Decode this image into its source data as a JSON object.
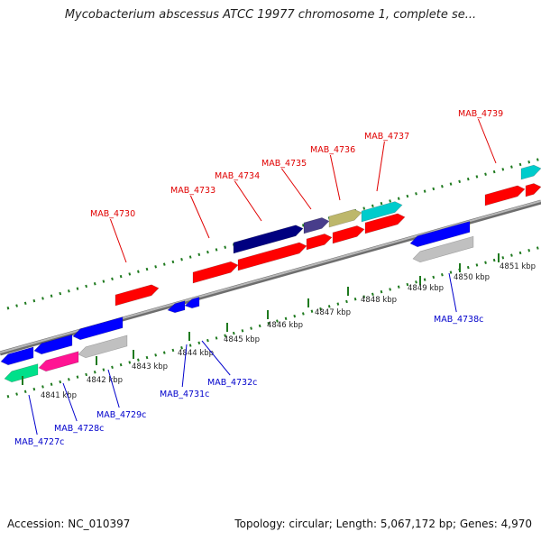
{
  "title": "Mycobacterium abscessus ATCC 19977 chromosome 1, complete se...",
  "footer": {
    "accession": "Accession: NC_010397",
    "summary": "Topology: circular; Length: 5,067,172 bp; Genes: 4,970"
  },
  "kbp_ticks": [
    {
      "label": "4841 kbp",
      "pos": 4841
    },
    {
      "label": "4842 kbp",
      "pos": 4842
    },
    {
      "label": "4843 kbp",
      "pos": 4843
    },
    {
      "label": "4844 kbp",
      "pos": 4844
    },
    {
      "label": "4845 kbp",
      "pos": 4845
    },
    {
      "label": "4846 kbp",
      "pos": 4846
    },
    {
      "label": "4847 kbp",
      "pos": 4847
    },
    {
      "label": "4848 kbp",
      "pos": 4848
    },
    {
      "label": "4849 kbp",
      "pos": 4849
    },
    {
      "label": "4850 kbp",
      "pos": 4850
    },
    {
      "label": "4851 kbp",
      "pos": 4851
    }
  ],
  "forward_genes": [
    {
      "name": "MAB_4730",
      "color": "#ff0000"
    },
    {
      "name": "MAB_4733",
      "color": "#ff0000"
    },
    {
      "name": "MAB_4734",
      "color": "#ff0000"
    },
    {
      "name": "MAB_4735",
      "color": "#000080"
    },
    {
      "name": "MAB_4736",
      "color": "#483d8b"
    },
    {
      "name": "MAB_4737",
      "color": "#00cccc"
    },
    {
      "name": "MAB_4739",
      "color": "#ff0000"
    }
  ],
  "reverse_genes": [
    {
      "name": "MAB_4727c",
      "color": "#00e08a"
    },
    {
      "name": "MAB_4728c",
      "color": "#ff1493"
    },
    {
      "name": "MAB_4729c",
      "color": "#c0c0c0"
    },
    {
      "name": "MAB_4731c",
      "color": "#0000ff"
    },
    {
      "name": "MAB_4732c",
      "color": "#0000ff"
    },
    {
      "name": "MAB_4738c",
      "color": "#c0c0c0"
    }
  ],
  "colors": {
    "forward_label": "#e00000",
    "reverse_label": "#0000cc",
    "tick": "#1f7a1f",
    "backbone": "#8c8c8c"
  }
}
